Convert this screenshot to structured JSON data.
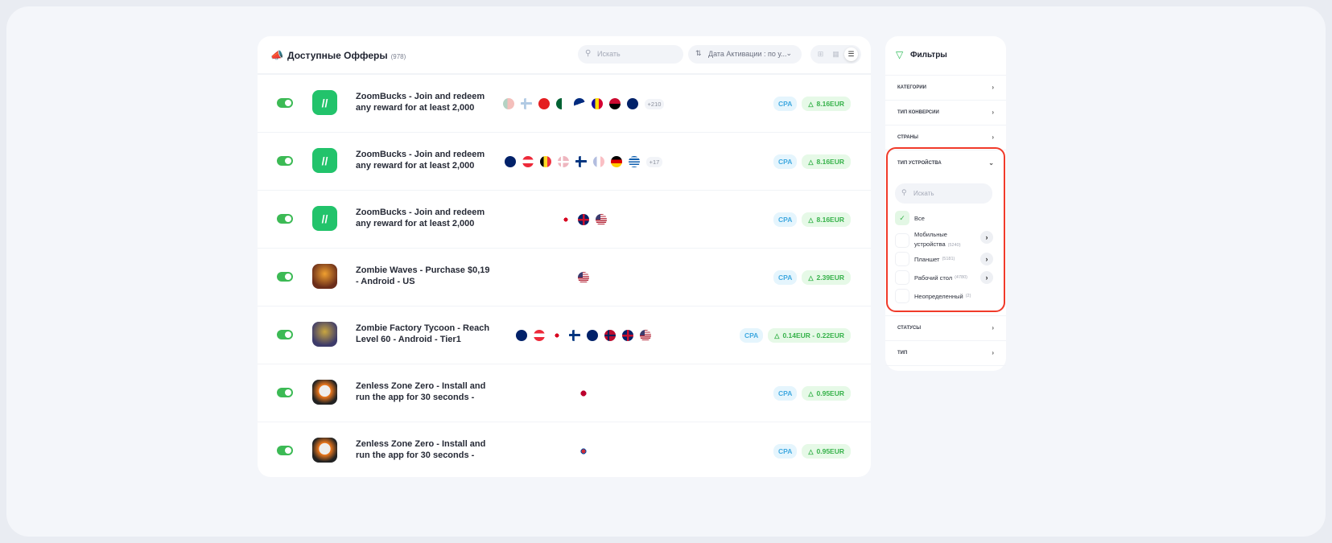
{
  "header": {
    "title": "Доступные Офферы",
    "count": "(978)",
    "icon": "megaphone-icon"
  },
  "search": {
    "placeholder": "Искать"
  },
  "sort": {
    "label": "Дата Активации : по у..."
  },
  "views": [
    "grid-large-icon",
    "grid-small-icon",
    "list-icon"
  ],
  "colors": {
    "accent": "#3cba55",
    "cpa": "#41a9e0",
    "highlight": "#f03a2a"
  },
  "offers": [
    {
      "name": "ZoomBucks - Join and redeem any reward for at least 2,000",
      "icon": "zoombucks",
      "enabled": true,
      "flags": [
        "pt",
        "ax",
        "al",
        "dz",
        "as",
        "ad",
        "ao",
        "ai"
      ],
      "faded": [
        0,
        1
      ],
      "more": "+210",
      "type": "CPA",
      "price": "8.16EUR"
    },
    {
      "name": "ZoomBucks - Join and redeem any reward for at least 2,000",
      "icon": "zoombucks",
      "enabled": true,
      "flags": [
        "nz",
        "at",
        "be",
        "dk",
        "fi",
        "fr",
        "de",
        "gr"
      ],
      "faded": [
        3,
        5
      ],
      "more": "+17",
      "type": "CPA",
      "price": "8.16EUR"
    },
    {
      "name": "ZoomBucks - Join and redeem any reward for at least 2,000",
      "icon": "zoombucks",
      "enabled": true,
      "flags": [
        "ca",
        "gb",
        "us"
      ],
      "faded": [],
      "more": "",
      "type": "CPA",
      "price": "8.16EUR"
    },
    {
      "name": "Zombie Waves - Purchase $0,19 - Android - US",
      "icon": "zombie-waves",
      "enabled": true,
      "flags": [
        "us"
      ],
      "faded": [],
      "more": "",
      "type": "CPA",
      "price": "2.39EUR"
    },
    {
      "name": "Zombie Factory Tycoon - Reach Level 60 - Android - Tier1",
      "icon": "zombie-factory",
      "enabled": true,
      "flags": [
        "nz",
        "at",
        "ca",
        "fi",
        "au",
        "no",
        "gb",
        "us"
      ],
      "faded": [],
      "more": "",
      "type": "CPA",
      "price": "0.14EUR - 0.22EUR"
    },
    {
      "name": "Zenless Zone Zero - Install and run the app for 30 seconds -",
      "icon": "zenless",
      "enabled": true,
      "flags": [
        "jp"
      ],
      "faded": [],
      "more": "",
      "type": "CPA",
      "price": "0.95EUR"
    },
    {
      "name": "Zenless Zone Zero - Install and run the app for 30 seconds -",
      "icon": "zenless",
      "enabled": true,
      "flags": [
        "kr"
      ],
      "faded": [],
      "more": "",
      "type": "CPA",
      "price": "0.95EUR"
    }
  ],
  "filters": {
    "title": "Фильтры",
    "sections_top": [
      "КАТЕГОРИИ",
      "ТИП КОНВЕРСИИ",
      "СТРАНЫ"
    ],
    "device": {
      "title": "ТИП УСТРОЙСТВА",
      "search_placeholder": "Искать",
      "options": [
        {
          "label": "Все",
          "count": "",
          "checked": true,
          "expandable": false
        },
        {
          "label": "Мобильные устройства",
          "count": "(5240)",
          "checked": false,
          "expandable": true
        },
        {
          "label": "Планшет",
          "count": "(5181)",
          "checked": false,
          "expandable": true
        },
        {
          "label": "Рабочий стол",
          "count": "(4780)",
          "checked": false,
          "expandable": true
        },
        {
          "label": "Неопределенный",
          "count": "(2)",
          "checked": false,
          "expandable": false
        }
      ]
    },
    "sections_bottom": [
      "СТАТУСЫ",
      "ТИП"
    ]
  }
}
